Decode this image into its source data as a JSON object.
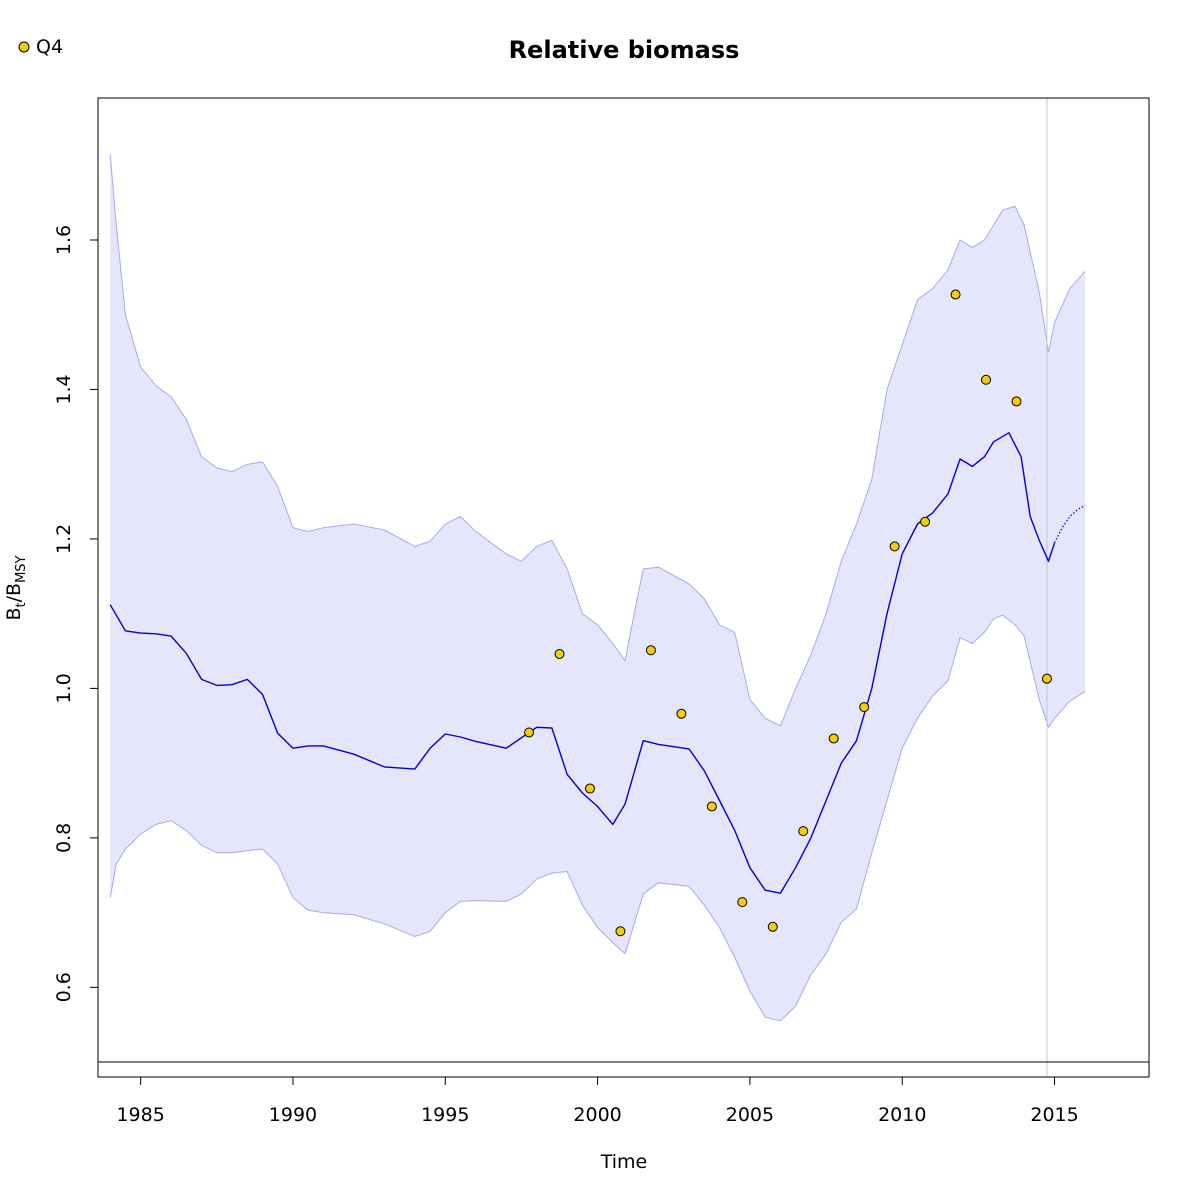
{
  "chart_data": {
    "type": "line",
    "title": "Relative biomass",
    "xlabel": "Time",
    "ylabel": {
      "main": "B",
      "sub1": "t",
      "sep": "/B",
      "sub2": "MSY"
    },
    "xlim": [
      1983.6,
      2018.1
    ],
    "ylim": [
      0.48,
      1.79
    ],
    "x_ticks": [
      1985,
      1990,
      1995,
      2000,
      2005,
      2010,
      2015
    ],
    "y_ticks": [
      0.6,
      0.8,
      1.0,
      1.2,
      1.4,
      1.6
    ],
    "y_tick_labels": [
      "0.6",
      "0.8",
      "1.0",
      "1.2",
      "1.4",
      "1.6"
    ],
    "reference_hline": 0.5,
    "reference_vline": 2014.75,
    "colors": {
      "band_fill": "#e5e5fb",
      "band_edge": "#a9a9ec",
      "line": "#0000dd",
      "point_fill": "#f5cc0a",
      "point_edge": "#000000",
      "ref_vline": "#c8c8c8",
      "ref_hline": "#000000"
    },
    "legend": {
      "position": "top-left",
      "entries": [
        "Q4"
      ]
    },
    "estimate": {
      "x": [
        1984.0,
        1984.5,
        1985.0,
        1985.5,
        1986.0,
        1986.5,
        1987.0,
        1987.5,
        1988.0,
        1988.5,
        1989.0,
        1989.5,
        1990.0,
        1990.5,
        1991.0,
        1992.0,
        1993.0,
        1994.0,
        1994.5,
        1995.0,
        1995.5,
        1996.0,
        1997.0,
        1998.0,
        1998.5,
        1999.0,
        1999.5,
        2000.0,
        2000.5,
        2000.9,
        2001.5,
        2002.0,
        2003.0,
        2003.5,
        2004.0,
        2004.5,
        2005.0,
        2005.5,
        2006.0,
        2006.5,
        2007.0,
        2007.5,
        2008.0,
        2008.5,
        2009.0,
        2009.5,
        2010.0,
        2010.5,
        2011.0,
        2011.5,
        2011.9,
        2012.3,
        2012.7,
        2013.0,
        2013.5,
        2013.9,
        2014.2,
        2014.5,
        2014.8,
        2015.0
      ],
      "y": [
        1.112,
        1.077,
        1.074,
        1.073,
        1.07,
        1.047,
        1.012,
        1.004,
        1.005,
        1.012,
        0.992,
        0.94,
        0.92,
        0.923,
        0.923,
        0.912,
        0.895,
        0.892,
        0.92,
        0.939,
        0.935,
        0.929,
        0.92,
        0.948,
        0.947,
        0.885,
        0.86,
        0.842,
        0.818,
        0.845,
        0.93,
        0.925,
        0.919,
        0.89,
        0.85,
        0.81,
        0.76,
        0.73,
        0.726,
        0.76,
        0.8,
        0.85,
        0.9,
        0.93,
        1.0,
        1.1,
        1.18,
        1.22,
        1.235,
        1.26,
        1.307,
        1.297,
        1.31,
        1.33,
        1.342,
        1.31,
        1.23,
        1.198,
        1.17,
        1.195
      ]
    },
    "projection": {
      "x": [
        2015.0,
        2015.25,
        2015.5,
        2015.75,
        2016.0
      ],
      "y": [
        1.195,
        1.215,
        1.23,
        1.239,
        1.245
      ]
    },
    "ci_upper": {
      "x": [
        1984.0,
        1984.2,
        1984.5,
        1985.0,
        1985.5,
        1986.0,
        1986.5,
        1987.0,
        1987.5,
        1988.0,
        1988.5,
        1989.0,
        1989.5,
        1990.0,
        1990.5,
        1991.0,
        1992.0,
        1993.0,
        1994.0,
        1994.5,
        1995.0,
        1995.5,
        1996.0,
        1997.0,
        1997.5,
        1998.0,
        1998.5,
        1999.0,
        1999.5,
        2000.0,
        2000.5,
        2000.9,
        2001.2,
        2001.5,
        2002.0,
        2003.0,
        2003.5,
        2004.0,
        2004.5,
        2005.0,
        2005.5,
        2006.0,
        2006.5,
        2007.0,
        2007.5,
        2008.0,
        2008.5,
        2009.0,
        2009.5,
        2010.0,
        2010.5,
        2011.0,
        2011.5,
        2011.9,
        2012.3,
        2012.7,
        2013.0,
        2013.3,
        2013.7,
        2014.0,
        2014.5,
        2014.8,
        2015.0,
        2015.5,
        2016.0
      ],
      "y": [
        1.715,
        1.62,
        1.5,
        1.43,
        1.405,
        1.39,
        1.36,
        1.31,
        1.295,
        1.29,
        1.3,
        1.303,
        1.27,
        1.215,
        1.21,
        1.215,
        1.22,
        1.212,
        1.19,
        1.197,
        1.22,
        1.23,
        1.21,
        1.18,
        1.17,
        1.19,
        1.198,
        1.16,
        1.1,
        1.085,
        1.06,
        1.037,
        1.1,
        1.16,
        1.162,
        1.14,
        1.12,
        1.085,
        1.075,
        0.985,
        0.96,
        0.95,
        1.0,
        1.045,
        1.1,
        1.17,
        1.22,
        1.28,
        1.4,
        1.46,
        1.52,
        1.535,
        1.56,
        1.6,
        1.59,
        1.6,
        1.62,
        1.64,
        1.645,
        1.62,
        1.53,
        1.45,
        1.49,
        1.535,
        1.558
      ]
    },
    "ci_lower": {
      "x": [
        1984.0,
        1984.2,
        1984.5,
        1985.0,
        1985.5,
        1986.0,
        1986.5,
        1987.0,
        1987.5,
        1988.0,
        1988.5,
        1989.0,
        1989.5,
        1990.0,
        1990.5,
        1991.0,
        1992.0,
        1993.0,
        1994.0,
        1994.5,
        1995.0,
        1995.5,
        1996.0,
        1997.0,
        1997.5,
        1998.0,
        1998.5,
        1999.0,
        1999.5,
        2000.0,
        2000.5,
        2000.9,
        2001.2,
        2001.5,
        2002.0,
        2003.0,
        2003.5,
        2004.0,
        2004.5,
        2005.0,
        2005.5,
        2006.0,
        2006.5,
        2007.0,
        2007.5,
        2008.0,
        2008.5,
        2009.0,
        2009.5,
        2010.0,
        2010.5,
        2011.0,
        2011.5,
        2011.9,
        2012.3,
        2012.7,
        2013.0,
        2013.3,
        2013.7,
        2014.0,
        2014.5,
        2014.8,
        2015.0,
        2015.5,
        2016.0
      ],
      "y": [
        0.72,
        0.765,
        0.785,
        0.805,
        0.818,
        0.823,
        0.81,
        0.79,
        0.78,
        0.78,
        0.783,
        0.785,
        0.765,
        0.72,
        0.703,
        0.7,
        0.697,
        0.685,
        0.668,
        0.675,
        0.7,
        0.715,
        0.716,
        0.715,
        0.725,
        0.745,
        0.753,
        0.755,
        0.71,
        0.68,
        0.66,
        0.645,
        0.685,
        0.725,
        0.74,
        0.735,
        0.71,
        0.68,
        0.64,
        0.595,
        0.56,
        0.555,
        0.575,
        0.617,
        0.645,
        0.687,
        0.705,
        0.78,
        0.85,
        0.92,
        0.96,
        0.99,
        1.01,
        1.068,
        1.06,
        1.075,
        1.093,
        1.098,
        1.085,
        1.07,
        0.985,
        0.948,
        0.96,
        0.983,
        0.996
      ]
    },
    "observations": {
      "name": "Q4",
      "x": [
        1997.75,
        1998.75,
        1999.75,
        2000.75,
        2001.75,
        2002.75,
        2003.75,
        2004.75,
        2005.75,
        2006.75,
        2007.75,
        2008.75,
        2009.75,
        2010.75,
        2011.75,
        2012.75,
        2013.75,
        2014.75
      ],
      "y": [
        0.941,
        1.046,
        0.866,
        0.675,
        1.051,
        0.966,
        0.842,
        0.714,
        0.681,
        0.809,
        0.933,
        0.975,
        1.19,
        1.223,
        1.527,
        1.413,
        1.384,
        1.013
      ]
    }
  }
}
